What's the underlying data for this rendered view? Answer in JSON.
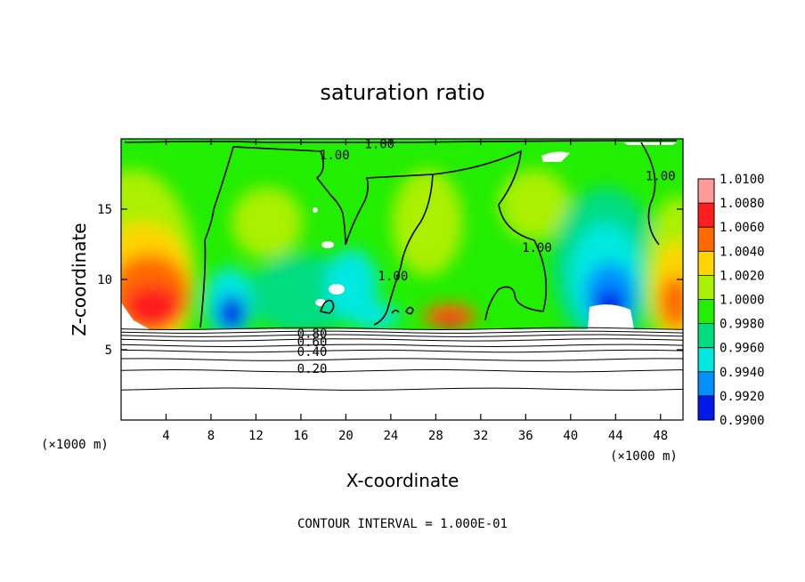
{
  "chart_data": {
    "type": "heatmap",
    "title": "saturation ratio",
    "xlabel": "X-coordinate",
    "ylabel": "Z-coordinate",
    "x_unit": "(×1000 m)",
    "y_unit": "(×1000 m)",
    "xlim": [
      0,
      50
    ],
    "ylim": [
      0,
      20
    ],
    "x_ticks": [
      4,
      8,
      12,
      16,
      20,
      24,
      28,
      32,
      36,
      40,
      44,
      48
    ],
    "y_ticks": [
      5,
      10,
      15
    ],
    "colorbar": {
      "levels": [
        "1.0100",
        "1.0080",
        "1.0060",
        "1.0040",
        "1.0020",
        "1.0000",
        "0.9980",
        "0.9960",
        "0.9940",
        "0.9920",
        "0.9900"
      ],
      "colors": [
        "#ff9a9a",
        "#ff1e1e",
        "#ff6a00",
        "#ffd400",
        "#aaf000",
        "#22ee00",
        "#00dc80",
        "#00e8e0",
        "#0090ff",
        "#0018e8",
        "#7a10b8"
      ]
    },
    "contour_labels": [
      {
        "text": "1.00",
        "x": 19,
        "z": 18.8
      },
      {
        "text": "1.00",
        "x": 23,
        "z": 19.6
      },
      {
        "text": "1.00",
        "x": 48,
        "z": 17.3
      },
      {
        "text": "1.00",
        "x": 37,
        "z": 12.2
      },
      {
        "text": "1.00",
        "x": 24.2,
        "z": 10.2
      },
      {
        "text": "0.80",
        "x": 17,
        "z": 6.1
      },
      {
        "text": "0.60",
        "x": 17,
        "z": 5.5
      },
      {
        "text": "0.40",
        "x": 17,
        "z": 4.8
      },
      {
        "text": "0.20",
        "x": 17,
        "z": 3.6
      }
    ],
    "lower_contour_levels": [
      0.2,
      0.4,
      0.6,
      0.8
    ],
    "lower_contour_heights": [
      2.2,
      3.5,
      4.3,
      4.9,
      5.3,
      5.7,
      6.0,
      6.25,
      6.5
    ],
    "interval_note": "CONTOUR INTERVAL = 1.000E-01"
  }
}
